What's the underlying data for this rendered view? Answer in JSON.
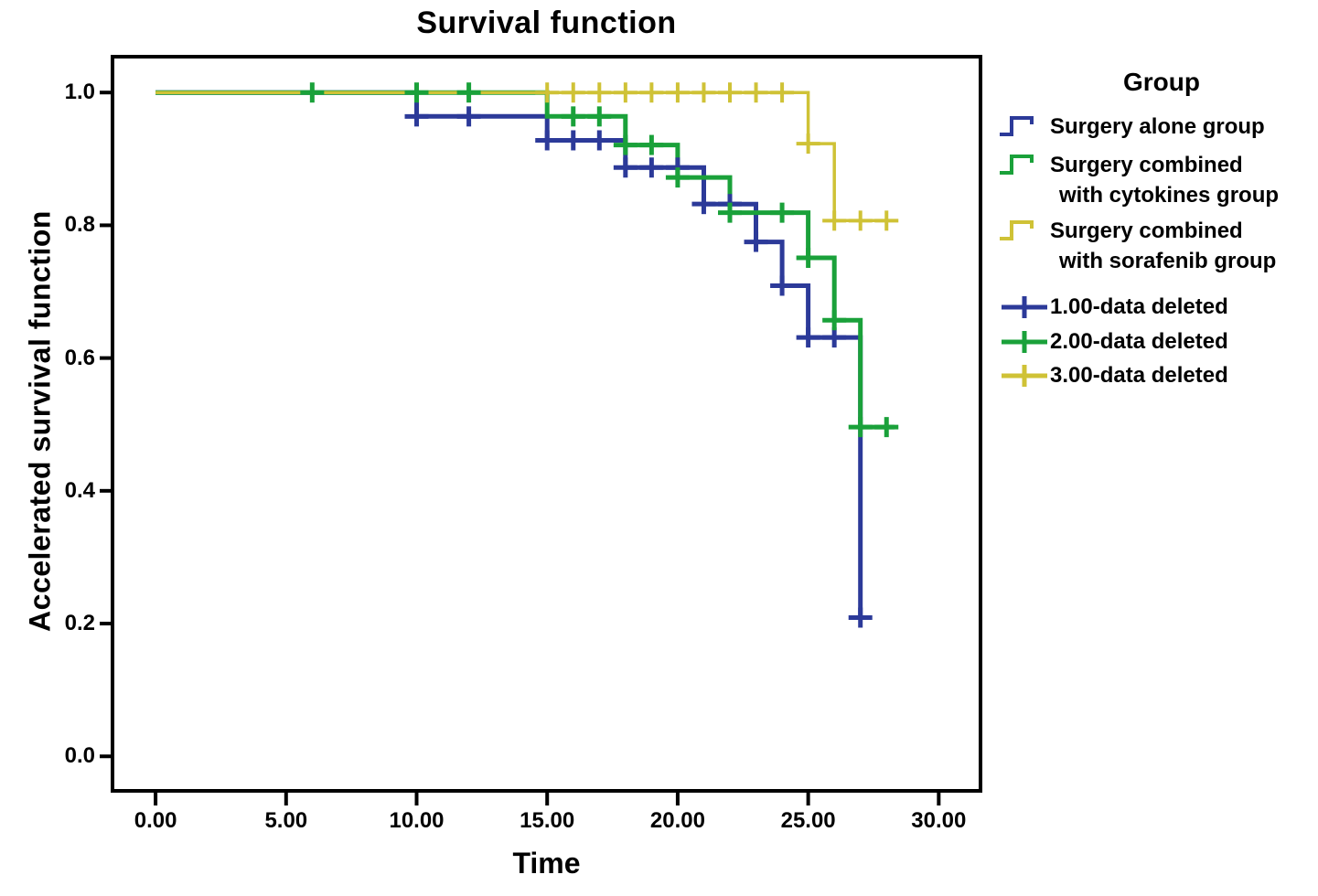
{
  "chart_data": {
    "type": "line",
    "subtype": "kaplan-meier-step",
    "title": "Survival function",
    "xlabel": "Time",
    "ylabel": "Accelerated survival function",
    "xlim": [
      -1.65,
      31.6
    ],
    "ylim": [
      -0.052,
      1.054
    ],
    "grid": false,
    "x_tick_values": [
      0,
      5,
      10,
      15,
      20,
      25,
      30
    ],
    "x_tick_labels": [
      "0.00",
      "5.00",
      "10.00",
      "15.00",
      "20.00",
      "25.00",
      "30.00"
    ],
    "y_tick_values": [
      0.0,
      0.2,
      0.4,
      0.6,
      0.8,
      1.0
    ],
    "y_tick_labels": [
      "0.0",
      "0.2",
      "0.4",
      "0.6",
      "0.8",
      "1.0"
    ],
    "frame_color": "#000000",
    "background_color": "#ffffff",
    "legend": {
      "title": "Group",
      "position": "right",
      "line_items": [
        {
          "line1": "Surgery alone group",
          "line2": "",
          "color": "#2c3a99"
        },
        {
          "line1": "Surgery combined",
          "line2": "with cytokines group",
          "color": "#1aa13a"
        },
        {
          "line1": "Surgery combined",
          "line2": "with sorafenib group",
          "color": "#cfc236"
        }
      ],
      "censor_items": [
        {
          "label": "1.00-data deleted",
          "color": "#2c3a99"
        },
        {
          "label": "2.00-data deleted",
          "color": "#1aa13a"
        },
        {
          "label": "3.00-data deleted",
          "color": "#cfc236"
        }
      ]
    },
    "series": [
      {
        "name": "Surgery alone group",
        "color": "#2c3a99",
        "steps": [
          [
            0,
            1.0
          ],
          [
            10,
            1.0
          ],
          [
            10,
            0.964
          ],
          [
            15,
            0.964
          ],
          [
            15,
            0.928
          ],
          [
            18,
            0.928
          ],
          [
            18,
            0.887
          ],
          [
            21,
            0.887
          ],
          [
            21,
            0.832
          ],
          [
            23,
            0.832
          ],
          [
            23,
            0.775
          ],
          [
            24,
            0.775
          ],
          [
            24,
            0.709
          ],
          [
            25,
            0.709
          ],
          [
            25,
            0.631
          ],
          [
            27,
            0.631
          ],
          [
            27,
            0.209
          ]
        ],
        "censors": [
          [
            10,
            0.964
          ],
          [
            12,
            0.964
          ],
          [
            15,
            0.928
          ],
          [
            16,
            0.928
          ],
          [
            17,
            0.928
          ],
          [
            18,
            0.887
          ],
          [
            19,
            0.887
          ],
          [
            20,
            0.887
          ],
          [
            21,
            0.832
          ],
          [
            22,
            0.832
          ],
          [
            23,
            0.775
          ],
          [
            24,
            0.709
          ],
          [
            25,
            0.631
          ],
          [
            26,
            0.631
          ],
          [
            27,
            0.209
          ]
        ]
      },
      {
        "name": "Surgery combined with cytokines group",
        "color": "#1aa13a",
        "steps": [
          [
            0,
            1.0
          ],
          [
            15,
            1.0
          ],
          [
            15,
            0.964
          ],
          [
            18,
            0.964
          ],
          [
            18,
            0.921
          ],
          [
            20,
            0.921
          ],
          [
            20,
            0.872
          ],
          [
            22,
            0.872
          ],
          [
            22,
            0.819
          ],
          [
            25,
            0.819
          ],
          [
            25,
            0.751
          ],
          [
            26,
            0.751
          ],
          [
            26,
            0.657
          ],
          [
            27,
            0.657
          ],
          [
            27,
            0.496
          ],
          [
            28.3,
            0.496
          ]
        ],
        "censors": [
          [
            6,
            1.0
          ],
          [
            10,
            1.0
          ],
          [
            12,
            1.0
          ],
          [
            16,
            0.964
          ],
          [
            17,
            0.964
          ],
          [
            18,
            0.921
          ],
          [
            19,
            0.921
          ],
          [
            20,
            0.872
          ],
          [
            22,
            0.819
          ],
          [
            24,
            0.819
          ],
          [
            25,
            0.751
          ],
          [
            26,
            0.657
          ],
          [
            27,
            0.496
          ],
          [
            28,
            0.496
          ]
        ]
      },
      {
        "name": "Surgery combined with sorafenib group",
        "color": "#cfc236",
        "steps": [
          [
            0,
            1.0
          ],
          [
            25,
            1.0
          ],
          [
            25,
            0.923
          ],
          [
            26,
            0.923
          ],
          [
            26,
            0.807
          ],
          [
            28.3,
            0.807
          ]
        ],
        "censors": [
          [
            15,
            1.0
          ],
          [
            16,
            1.0
          ],
          [
            17,
            1.0
          ],
          [
            18,
            1.0
          ],
          [
            19,
            1.0
          ],
          [
            20,
            1.0
          ],
          [
            21,
            1.0
          ],
          [
            22,
            1.0
          ],
          [
            23,
            1.0
          ],
          [
            24,
            1.0
          ],
          [
            25,
            0.923
          ],
          [
            26,
            0.807
          ],
          [
            27,
            0.807
          ],
          [
            28,
            0.807
          ]
        ]
      }
    ]
  }
}
